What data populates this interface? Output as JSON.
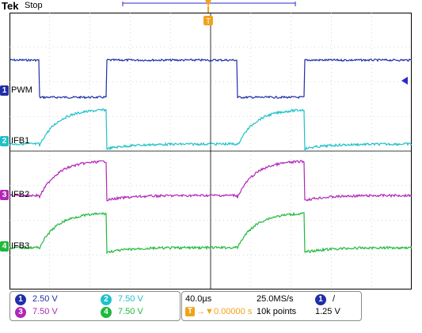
{
  "header": {
    "brand": "Tek",
    "state": "Stop"
  },
  "channels": [
    {
      "id": "1",
      "name": "PWM",
      "color": "#1f2fa8",
      "scale": "2.50 V"
    },
    {
      "id": "2",
      "name": "IFB1",
      "color": "#1ec1c8",
      "scale": "7.50 V"
    },
    {
      "id": "3",
      "name": "IFB2",
      "color": "#b027b7",
      "scale": "7.50 V"
    },
    {
      "id": "4",
      "name": "IFB3",
      "color": "#1fb93b",
      "scale": "7.50 V"
    }
  ],
  "trigger": {
    "marker": "T",
    "color": "#f2a21a",
    "source": "1",
    "slope": "/",
    "level": "1.25 V"
  },
  "timebase": {
    "per_div": "40.0µs",
    "sample_rate": "25.0MS/s",
    "position": "0.00000 s",
    "record": "10k points"
  }
}
